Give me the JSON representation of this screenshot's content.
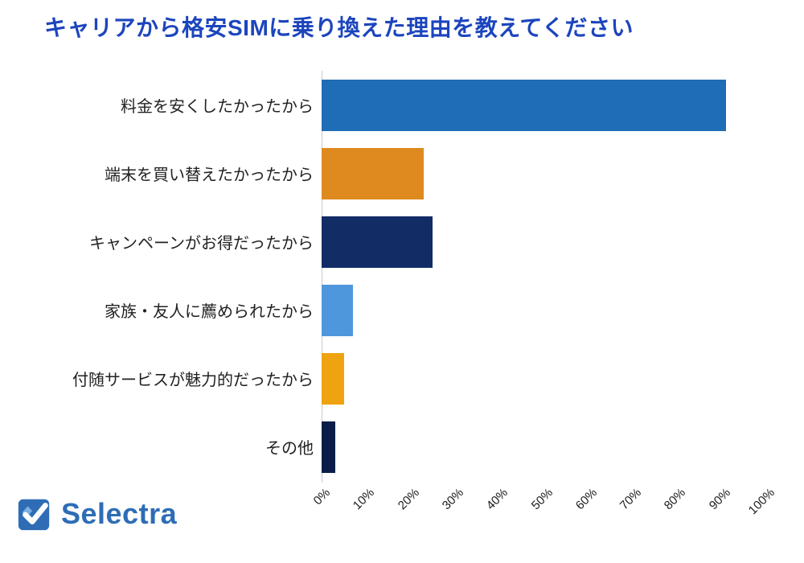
{
  "logo": {
    "text": "Selectra",
    "brand_color": "#2e6db6",
    "icon": "selectra-check-icon"
  },
  "chart_data": {
    "type": "bar",
    "orientation": "horizontal",
    "title": "キャリアから格安SIMに乗り換えた理由を教えてください",
    "title_color": "#1c45bd",
    "categories": [
      "料金を安くしたかったから",
      "端末を買い替えたかったから",
      "キャンペーンがお得だったから",
      "家族・友人に薦められたから",
      "付随サービスが魅力的だったから",
      "その他"
    ],
    "values": [
      91,
      23,
      25,
      7,
      5,
      3
    ],
    "unit": "%",
    "bar_colors": [
      "#1f6db6",
      "#df8a1e",
      "#122c66",
      "#4e97dd",
      "#efa310",
      "#0a1d48"
    ],
    "xlabel": "",
    "ylabel": "",
    "xlim": [
      0,
      100
    ],
    "x_ticks": [
      "0%",
      "10%",
      "20%",
      "30%",
      "40%",
      "50%",
      "60%",
      "70%",
      "80%",
      "90%",
      "100%"
    ],
    "grid": false,
    "legend": false
  }
}
